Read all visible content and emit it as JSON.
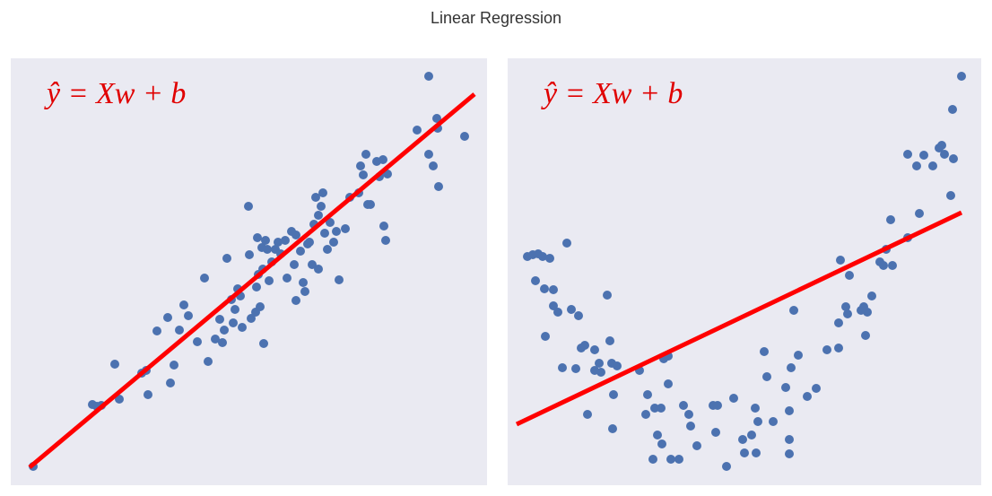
{
  "title": "Linear Regression",
  "chart_data": [
    {
      "type": "scatter",
      "annotation": "ŷ = Xw + b",
      "xlim": [
        0,
        531
      ],
      "ylim": [
        0,
        476
      ],
      "series": [
        {
          "color": "#4c72b0",
          "x": [
            25,
            91,
            96,
            101,
            116,
            121,
            146,
            151,
            153,
            163,
            175,
            178,
            182,
            188,
            193,
            198,
            208,
            216,
            220,
            228,
            233,
            236,
            238,
            241,
            246,
            248,
            250,
            253,
            256,
            258,
            265,
            266,
            268,
            273,
            274,
            275,
            276,
            278,
            280,
            281,
            282,
            284,
            286,
            288,
            291,
            295,
            298,
            301,
            306,
            308,
            313,
            316,
            318,
            318,
            323,
            326,
            328,
            331,
            333,
            336,
            338,
            340,
            343,
            343,
            346,
            348,
            350,
            353,
            356,
            360,
            363,
            366,
            373,
            378,
            388,
            390,
            393,
            396,
            398,
            401,
            408,
            411,
            415,
            416,
            420,
            418,
            453,
            466,
            466,
            471,
            475,
            476,
            477,
            506
          ],
          "y": [
            21,
            90,
            88,
            89,
            135,
            96,
            125,
            128,
            101,
            172,
            187,
            114,
            134,
            173,
            201,
            189,
            160,
            231,
            138,
            163,
            185,
            159,
            173,
            253,
            207,
            181,
            196,
            219,
            211,
            176,
            311,
            257,
            186,
            193,
            221,
            276,
            235,
            199,
            265,
            241,
            158,
            273,
            263,
            228,
            249,
            263,
            271,
            258,
            273,
            231,
            283,
            246,
            279,
            206,
            261,
            226,
            216,
            269,
            271,
            246,
            291,
            321,
            301,
            241,
            311,
            326,
            281,
            263,
            293,
            271,
            283,
            229,
            286,
            321,
            326,
            356,
            346,
            369,
            313,
            313,
            361,
            344,
            363,
            289,
            347,
            273,
            396,
            456,
            369,
            356,
            409,
            398,
            333,
            389
          ]
        }
      ],
      "fit_line": {
        "color": "#ff0000",
        "x": [
          21,
          517
        ],
        "y": [
          20,
          436
        ]
      }
    },
    {
      "type": "scatter",
      "annotation": "ŷ = Xw + b",
      "xlim": [
        0,
        528
      ],
      "ylim": [
        0,
        476
      ],
      "series": [
        {
          "color": "#4c72b0",
          "x": [
            22,
            28,
            34,
            39,
            47,
            31,
            41,
            51,
            42,
            51,
            56,
            61,
            66,
            71,
            76,
            79,
            82,
            86,
            89,
            97,
            97,
            102,
            104,
            111,
            114,
            116,
            117,
            118,
            122,
            147,
            156,
            154,
            162,
            164,
            167,
            171,
            172,
            174,
            179,
            179,
            182,
            191,
            196,
            202,
            204,
            211,
            229,
            234,
            232,
            244,
            252,
            262,
            264,
            272,
            276,
            277,
            279,
            286,
            289,
            296,
            310,
            314,
            314,
            314,
            316,
            319,
            324,
            334,
            344,
            356,
            369,
            369,
            371,
            377,
            379,
            381,
            394,
            397,
            399,
            401,
            406,
            415,
            419,
            422,
            429,
            427,
            446,
            459,
            446,
            456,
            464,
            474,
            481,
            484,
            487,
            494,
            496,
            497,
            506
          ],
          "y": [
            255,
            257,
            258,
            255,
            253,
            228,
            219,
            218,
            166,
            200,
            193,
            131,
            270,
            196,
            130,
            189,
            153,
            156,
            79,
            151,
            128,
            136,
            126,
            212,
            161,
            136,
            63,
            101,
            133,
            128,
            101,
            79,
            29,
            86,
            56,
            86,
            46,
            141,
            144,
            113,
            29,
            29,
            89,
            79,
            66,
            44,
            89,
            89,
            59,
            21,
            97,
            51,
            36,
            56,
            86,
            36,
            71,
            149,
            121,
            71,
            109,
            83,
            51,
            35,
            131,
            195,
            145,
            99,
            108,
            151,
            153,
            181,
            251,
            199,
            191,
            234,
            195,
            199,
            167,
            193,
            211,
            249,
            245,
            263,
            245,
            296,
            276,
            303,
            369,
            356,
            368,
            356,
            376,
            379,
            369,
            323,
            419,
            364,
            456
          ]
        }
      ],
      "fit_line": {
        "color": "#ff0000",
        "x": [
          10,
          506
        ],
        "y": [
          68,
          304
        ]
      }
    }
  ]
}
